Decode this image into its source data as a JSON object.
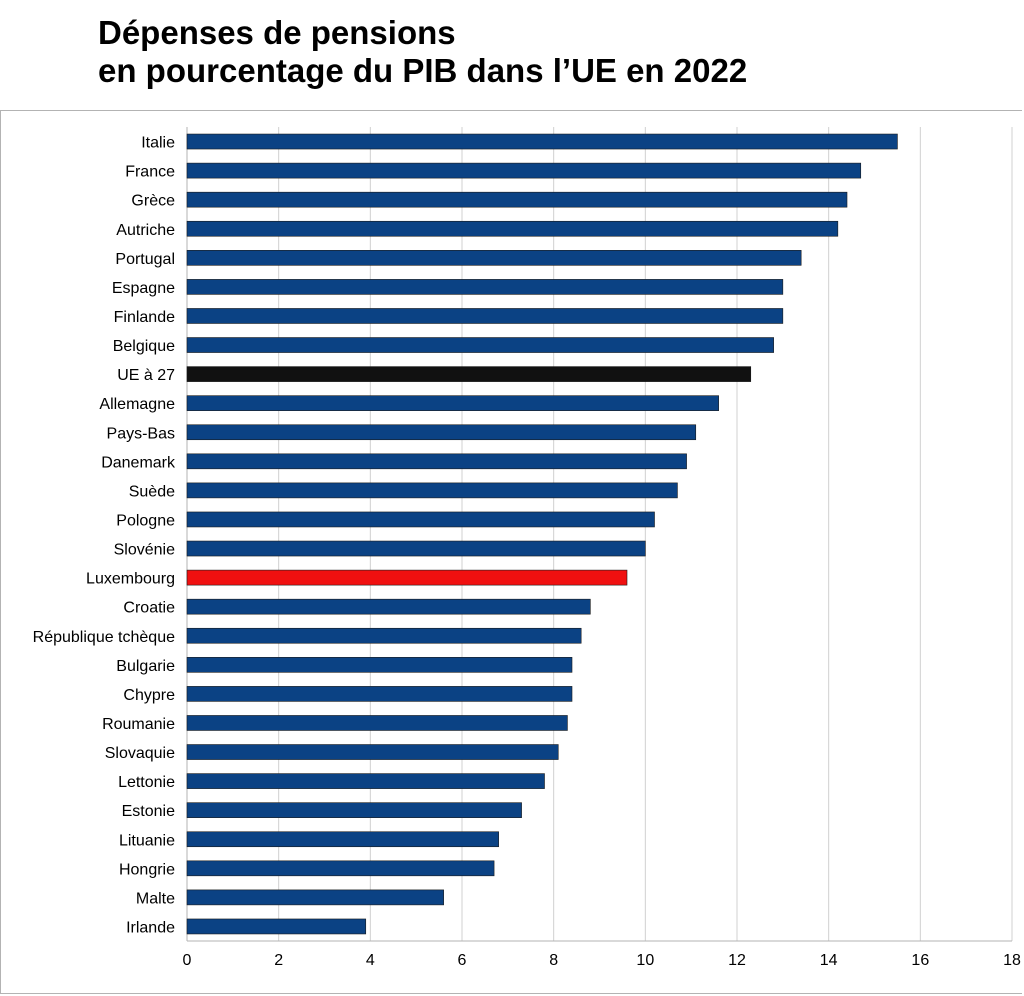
{
  "title": {
    "line1": "Dépenses de pensions",
    "line2": "en pourcentage du PIB dans l’UE en 2022"
  },
  "colors": {
    "default_bar": "#0b4284",
    "eu_bar": "#111111",
    "highlight_bar": "#f01010",
    "grid": "#d0d0d0",
    "axis": "#b3b3b3"
  },
  "chart_data": {
    "type": "bar",
    "orientation": "horizontal",
    "title": "Dépenses de pensions en pourcentage du PIB dans l’UE en 2022",
    "xlabel": "",
    "ylabel": "",
    "xlim": [
      0,
      18
    ],
    "xticks": [
      0,
      2,
      4,
      6,
      8,
      10,
      12,
      14,
      16,
      18
    ],
    "grid": "vertical",
    "legend": "none",
    "categories": [
      "Italie",
      "France",
      "Grèce",
      "Autriche",
      "Portugal",
      "Espagne",
      "Finlande",
      "Belgique",
      "UE à 27",
      "Allemagne",
      "Pays-Bas",
      "Danemark",
      "Suède",
      "Pologne",
      "Slovénie",
      "Luxembourg",
      "Croatie",
      "République tchèque",
      "Bulgarie",
      "Chypre",
      "Roumanie",
      "Slovaquie",
      "Lettonie",
      "Estonie",
      "Lituanie",
      "Hongrie",
      "Malte",
      "Irlande"
    ],
    "values": [
      15.5,
      14.7,
      14.4,
      14.2,
      13.4,
      13.0,
      13.0,
      12.8,
      12.3,
      11.6,
      11.1,
      10.9,
      10.7,
      10.2,
      10.0,
      9.6,
      8.8,
      8.6,
      8.4,
      8.4,
      8.3,
      8.1,
      7.8,
      7.3,
      6.8,
      6.7,
      5.6,
      3.9
    ],
    "highlight": {
      "UE à 27": "eu",
      "Luxembourg": "highlight"
    }
  }
}
